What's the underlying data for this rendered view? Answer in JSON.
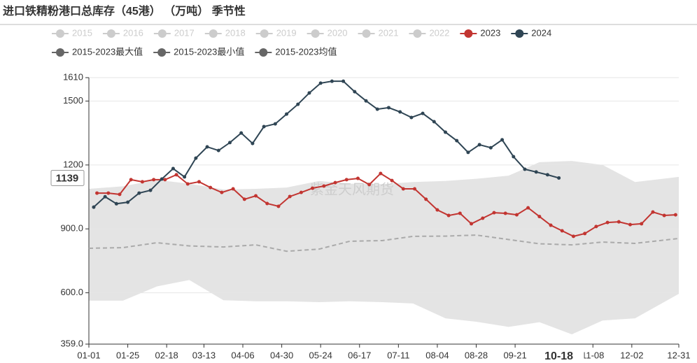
{
  "chart_data": {
    "type": "line",
    "title": "进口铁精粉港口总库存（45港） （万吨） 季节性",
    "watermark": "紫金天风期货",
    "legend_hidden": [
      "2015",
      "2016",
      "2017",
      "2018",
      "2019",
      "2020",
      "2021",
      "2022"
    ],
    "hidden_color": "#cccccc",
    "xlim": [
      "01-01",
      "12-31"
    ],
    "xticks": [
      "01-01",
      "01-25",
      "02-18",
      "03-13",
      "04-06",
      "04-30",
      "05-24",
      "06-17",
      "07-11",
      "08-04",
      "08-28",
      "09-21",
      "11-08",
      "12-02",
      "12-31"
    ],
    "x_pointer": "10-18",
    "ylim": [
      359,
      1610
    ],
    "yticks": [
      {
        "value": 359,
        "label": "359.0"
      },
      {
        "value": 600,
        "label": "600.0"
      },
      {
        "value": 900,
        "label": "900.0"
      },
      1200,
      1500,
      1610
    ],
    "y_pointer": 1139,
    "grid": true,
    "band": {
      "max_name": "2015-2023最大值",
      "min_name": "2015-2023最小值",
      "mean_name": "2015-2023均值",
      "color": "#e4e4e4",
      "mean_color": "#aaaaaa",
      "icon_color": "#666666",
      "x": [
        "01-01",
        "01-22",
        "02-12",
        "03-04",
        "03-25",
        "04-14",
        "05-03",
        "05-23",
        "06-11",
        "07-01",
        "07-20",
        "08-09",
        "08-28",
        "09-17",
        "10-06",
        "10-26",
        "11-14",
        "12-04",
        "12-31"
      ],
      "max": [
        1088,
        1100,
        1130,
        1112,
        1085,
        1088,
        1094,
        1125,
        1112,
        1110,
        1120,
        1125,
        1135,
        1150,
        1213,
        1219,
        1200,
        1120,
        1144
      ],
      "min": [
        563,
        563,
        630,
        660,
        565,
        560,
        560,
        556,
        560,
        556,
        550,
        480,
        464,
        440,
        462,
        405,
        470,
        480,
        595
      ],
      "mean": [
        809,
        812,
        835,
        820,
        815,
        825,
        795,
        805,
        842,
        845,
        865,
        866,
        871,
        850,
        830,
        825,
        838,
        832,
        855
      ]
    },
    "series": [
      {
        "name": "2023",
        "color": "#c23531",
        "x": [
          "01-06",
          "01-13",
          "01-20",
          "01-27",
          "02-03",
          "02-10",
          "02-17",
          "02-24",
          "03-03",
          "03-10",
          "03-17",
          "03-24",
          "03-31",
          "04-07",
          "04-14",
          "04-21",
          "04-28",
          "05-05",
          "05-12",
          "05-19",
          "05-26",
          "06-02",
          "06-09",
          "06-16",
          "06-23",
          "06-30",
          "07-07",
          "07-14",
          "07-21",
          "07-28",
          "08-04",
          "08-11",
          "08-18",
          "08-25",
          "09-01",
          "09-08",
          "09-15",
          "09-22",
          "09-29",
          "10-06",
          "10-13",
          "10-20",
          "10-27",
          "11-03",
          "11-10",
          "11-17",
          "11-24",
          "12-01",
          "12-08",
          "12-15",
          "12-22",
          "12-29"
        ],
        "values": [
          1068,
          1068,
          1062,
          1131,
          1121,
          1131,
          1131,
          1154,
          1111,
          1121,
          1094,
          1071,
          1088,
          1039,
          1055,
          1019,
          1006,
          1052,
          1071,
          1091,
          1101,
          1117,
          1131,
          1137,
          1108,
          1160,
          1127,
          1088,
          1088,
          1039,
          989,
          963,
          973,
          924,
          950,
          976,
          973,
          966,
          999,
          958,
          917,
          891,
          865,
          878,
          911,
          930,
          933,
          920,
          924,
          979,
          963,
          966
        ]
      },
      {
        "name": "2024",
        "color": "#2f4554",
        "x": [
          "01-04",
          "01-11",
          "01-18",
          "01-25",
          "02-01",
          "02-08",
          "02-15",
          "02-22",
          "03-01",
          "03-08",
          "03-15",
          "03-22",
          "03-29",
          "04-05",
          "04-12",
          "04-19",
          "04-26",
          "05-03",
          "05-10",
          "05-17",
          "05-24",
          "05-31",
          "06-07",
          "06-14",
          "06-21",
          "06-28",
          "07-05",
          "07-12",
          "07-19",
          "07-26",
          "08-02",
          "08-09",
          "08-16",
          "08-23",
          "08-30",
          "09-06",
          "09-13",
          "09-20",
          "09-27",
          "10-04",
          "10-11",
          "10-18"
        ],
        "values": [
          1002,
          1051,
          1018,
          1025,
          1068,
          1081,
          1134,
          1183,
          1144,
          1232,
          1285,
          1268,
          1305,
          1350,
          1301,
          1380,
          1393,
          1439,
          1485,
          1538,
          1584,
          1593,
          1593,
          1544,
          1501,
          1462,
          1469,
          1449,
          1423,
          1442,
          1403,
          1354,
          1314,
          1259,
          1295,
          1281,
          1318,
          1239,
          1180,
          1167,
          1154,
          1139
        ]
      }
    ]
  }
}
